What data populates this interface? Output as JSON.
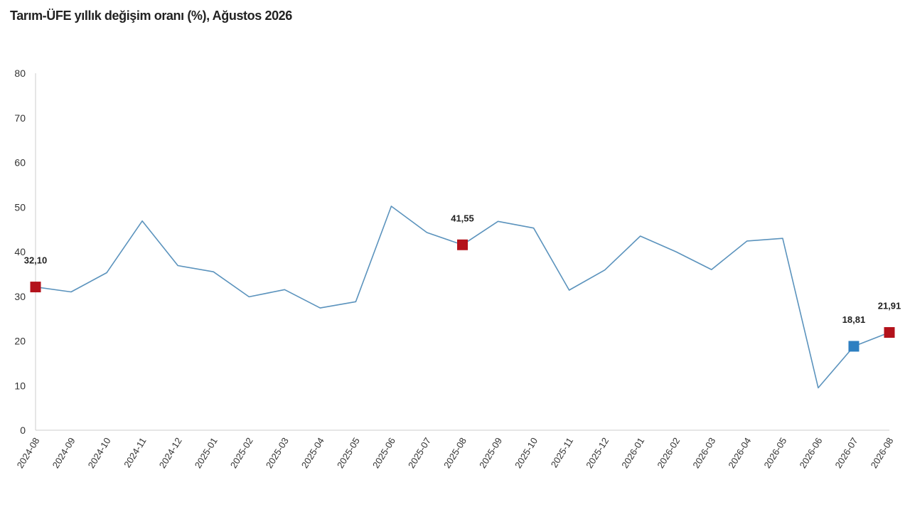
{
  "chart_data": {
    "type": "line",
    "title": "Tarım-ÜFE yıllık değişim oranı (%), Ağustos 2026",
    "xlabel": "",
    "ylabel": "",
    "ylim": [
      0,
      80
    ],
    "yticks": [
      0,
      10,
      20,
      30,
      40,
      50,
      60,
      70,
      80
    ],
    "grid": false,
    "categories": [
      "2024-08",
      "2024-09",
      "2024-10",
      "2024-11",
      "2024-12",
      "2025-01",
      "2025-02",
      "2025-03",
      "2025-04",
      "2025-05",
      "2025-06",
      "2025-07",
      "2025-08",
      "2025-09",
      "2025-10",
      "2025-11",
      "2025-12",
      "2026-01",
      "2026-02",
      "2026-03",
      "2026-04",
      "2026-05",
      "2026-06",
      "2026-07",
      "2026-08"
    ],
    "series": [
      {
        "color": "#5b93bd",
        "values": [
          32.1,
          31.0,
          35.3,
          46.9,
          36.9,
          35.5,
          29.9,
          31.5,
          27.4,
          28.8,
          50.2,
          44.3,
          41.55,
          46.8,
          45.3,
          31.4,
          35.9,
          43.5,
          40.0,
          36.0,
          42.4,
          43.0,
          9.5,
          18.81,
          21.91
        ]
      }
    ],
    "highlights": [
      {
        "index": 0,
        "label": "32,10",
        "color": "#b3121b"
      },
      {
        "index": 12,
        "label": "41,55",
        "color": "#b3121b"
      },
      {
        "index": 23,
        "label": "18,81",
        "color": "#2e7fc1"
      },
      {
        "index": 24,
        "label": "21,91",
        "color": "#b3121b"
      }
    ],
    "axis_color": "#cccccc"
  }
}
